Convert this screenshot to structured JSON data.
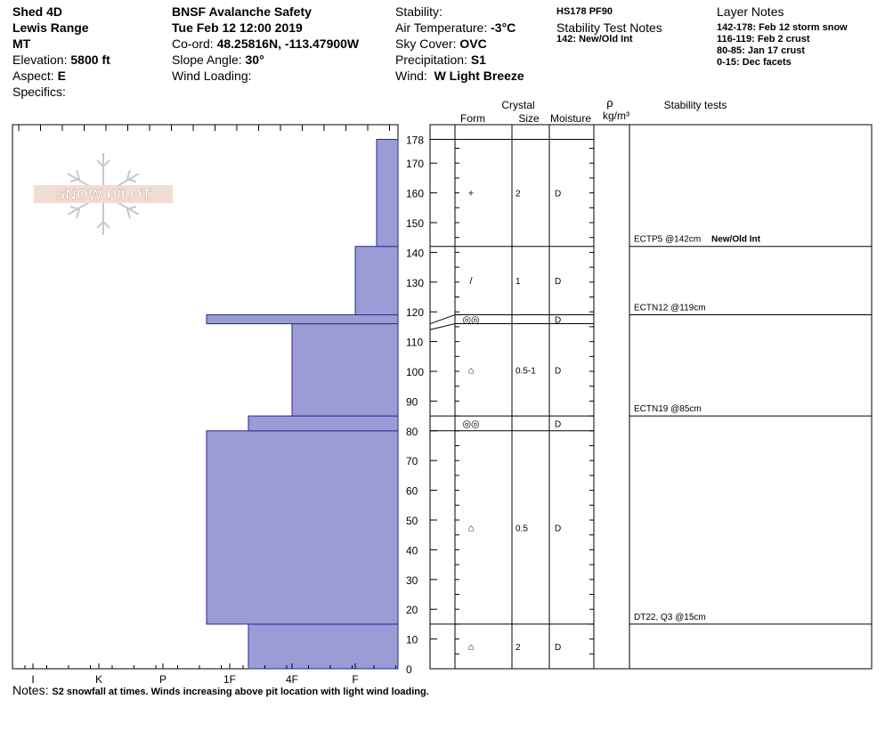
{
  "header": {
    "location": "Shed 4D",
    "range": "Lewis Range",
    "state": "MT",
    "elevation_label": "Elevation:",
    "elevation": "5800 ft",
    "aspect_label": "Aspect:",
    "aspect": "E",
    "specifics_label": "Specifics:",
    "org": "BNSF Avalanche Safety",
    "datetime": "Tue Feb 12 12:00 2019",
    "coord_label": "Co-ord:",
    "coord": "48.25816N, -113.47900W",
    "slope_label": "Slope Angle:",
    "slope": "30°",
    "wind_loading_label": "Wind Loading:",
    "stability_label": "Stability:",
    "air_temp_label": "Air Temperature:",
    "air_temp": "-3°C",
    "sky_label": "Sky Cover:",
    "sky": "OVC",
    "precip_label": "Precipitation:",
    "precip": "S1",
    "wind_label": "Wind:",
    "wind": "W Light Breeze",
    "hs": "HS178 PF90",
    "stability_notes_title": "Stability Test Notes",
    "stability_note": "142: New/Old Int",
    "layer_notes_title": "Layer Notes",
    "layer_notes": [
      "142-178: Feb 12 storm snow",
      "116-119: Feb 2 crust",
      "80-85: Jan 17 crust",
      "0-15: Dec facets"
    ]
  },
  "logo_text": "SNOW PILOT",
  "notes_label": "Notes:",
  "notes": "S2 snowfall at times. Winds increasing above pit location with light wind loading.",
  "columns": {
    "crystal": "Crystal",
    "form": "Form",
    "size": "Size",
    "moisture": "Moisture",
    "rho": "ρ",
    "density_unit": "kg/m³",
    "stability_tests": "Stability tests"
  },
  "chart_data": {
    "type": "snow_profile",
    "height_axis": {
      "min": 0,
      "max": 180,
      "ticks": [
        0,
        10,
        20,
        30,
        40,
        50,
        60,
        70,
        80,
        90,
        100,
        110,
        120,
        130,
        140,
        150,
        160,
        170,
        178
      ]
    },
    "hardness_axis": {
      "ticks": [
        "I",
        "K",
        "P",
        "1F",
        "4F",
        "F"
      ]
    },
    "hardness_layers": [
      {
        "bottom": 0,
        "top": 15,
        "hardness": "4F-"
      },
      {
        "bottom": 15,
        "top": 80,
        "hardness": "1F-"
      },
      {
        "bottom": 80,
        "top": 85,
        "hardness": "4F-"
      },
      {
        "bottom": 85,
        "top": 116,
        "hardness": "4F"
      },
      {
        "bottom": 116,
        "top": 119,
        "hardness": "1F-"
      },
      {
        "bottom": 119,
        "top": 142,
        "hardness": "F"
      },
      {
        "bottom": 142,
        "top": 178,
        "hardness": "F+"
      }
    ],
    "layers": [
      {
        "bottom": 142,
        "top": 178,
        "form": "+",
        "size": "2",
        "moisture": "D"
      },
      {
        "bottom": 119,
        "top": 142,
        "form": "/",
        "size": "1",
        "moisture": "D"
      },
      {
        "bottom": 116,
        "top": 119,
        "form": "◎◎",
        "size": "",
        "moisture": "D"
      },
      {
        "bottom": 85,
        "top": 116,
        "form": "⌂",
        "size": "0.5-1",
        "moisture": "D"
      },
      {
        "bottom": 80,
        "top": 85,
        "form": "◎◎",
        "size": "",
        "moisture": "D"
      },
      {
        "bottom": 15,
        "top": 80,
        "form": "⌂",
        "size": "0.5",
        "moisture": "D"
      },
      {
        "bottom": 0,
        "top": 15,
        "form": "⌂",
        "size": "2",
        "moisture": "D"
      }
    ],
    "stability_tests": [
      {
        "at": 142,
        "label": "ECTP5 @142cm",
        "note": "New/Old Int"
      },
      {
        "at": 119,
        "label": "ECTN12 @119cm",
        "note": ""
      },
      {
        "at": 85,
        "label": "ECTN19 @85cm",
        "note": ""
      },
      {
        "at": 15,
        "label": "DT22, Q3 @15cm",
        "note": ""
      }
    ]
  },
  "colors": {
    "fill": "#9b9bd6",
    "stroke": "#2a2a8a"
  }
}
